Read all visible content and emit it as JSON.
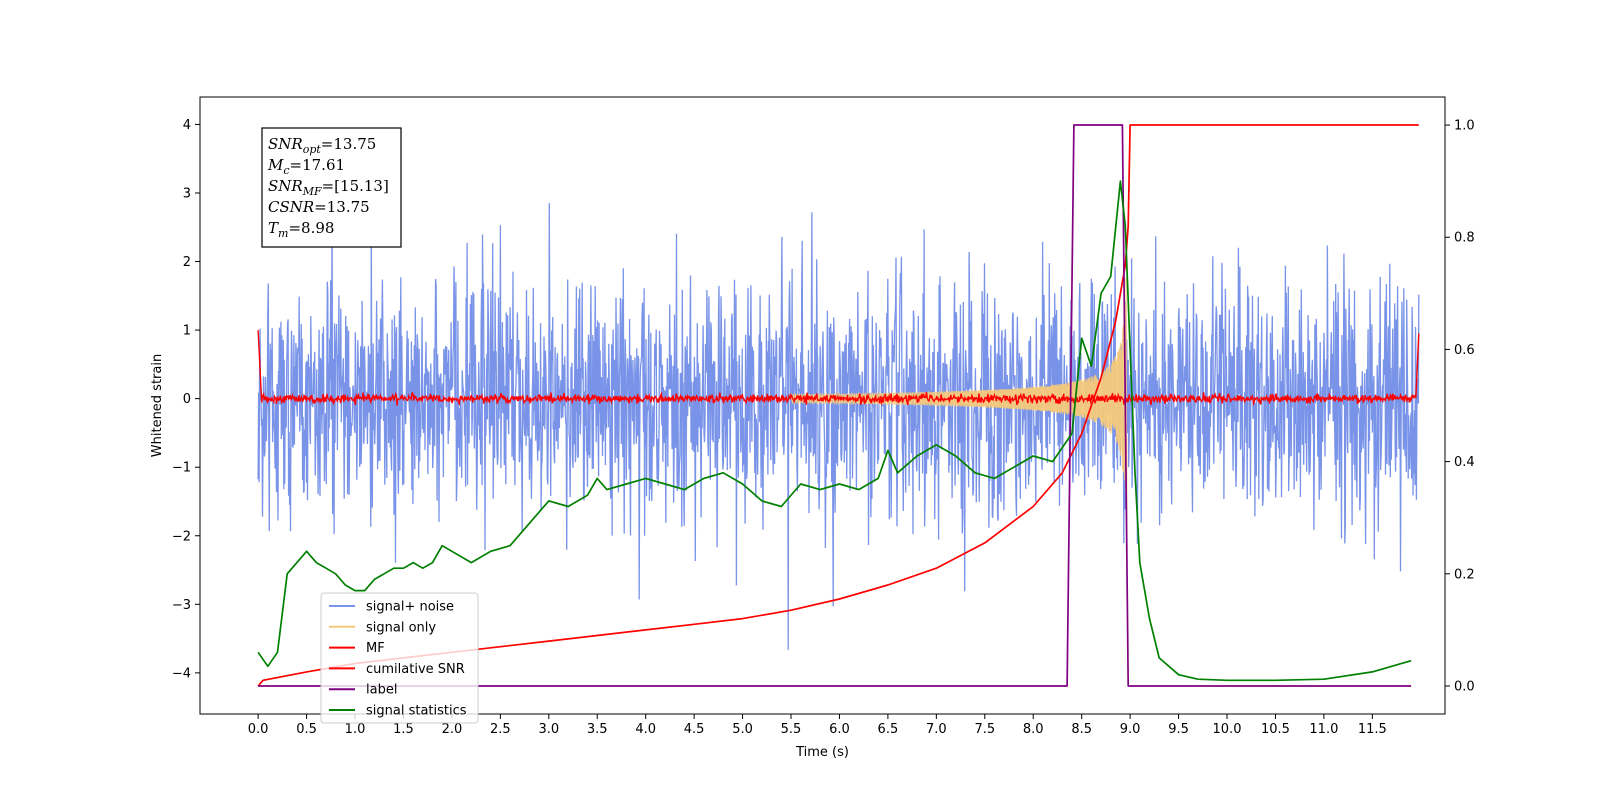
{
  "chart_data": {
    "type": "line",
    "xlabel": "Time (s)",
    "ylabel": "Whitened strain",
    "xlim": [
      -0.6,
      12.25
    ],
    "ylim_left": [
      -4.6,
      4.4
    ],
    "ylim_right": [
      -0.05,
      1.05
    ],
    "x_ticks": [
      0.0,
      0.5,
      1.0,
      1.5,
      2.0,
      2.5,
      3.0,
      3.5,
      4.0,
      4.5,
      5.0,
      5.5,
      6.0,
      6.5,
      7.0,
      7.5,
      8.0,
      8.5,
      9.0,
      9.5,
      10.0,
      10.5,
      11.0,
      11.5
    ],
    "x_tick_labels": [
      "0.0",
      "0.5",
      "1.0",
      "1.5",
      "2.0",
      "2.5",
      "3.0",
      "3.5",
      "4.0",
      "4.5",
      "5.0",
      "5.5",
      "6.0",
      "6.5",
      "7.0",
      "7.5",
      "8.0",
      "8.5",
      "9.0",
      "9.5",
      "10.0",
      "10.5",
      "11.0",
      "11.5"
    ],
    "y_ticks_left": [
      4,
      3,
      2,
      1,
      0,
      -1,
      -2,
      -3,
      -4
    ],
    "y_tick_labels_left": [
      "4",
      "3",
      "2",
      "1",
      "0",
      "−1",
      "−2",
      "−3",
      "−4"
    ],
    "y_ticks_right": [
      1.0,
      0.8,
      0.6,
      0.4,
      0.2,
      0.0
    ],
    "y_tick_labels_right": [
      "1.0",
      "0.8",
      "0.6",
      "0.4",
      "0.2",
      "0.0"
    ],
    "grid": false,
    "legend_position": "lower-left",
    "annotation": {
      "lines": [
        {
          "main": "SNR",
          "sub": "opt",
          "rest": "=13.75"
        },
        {
          "main": "M",
          "sub": "c",
          "rest": "=17.61"
        },
        {
          "main": "SNR",
          "sub": "MF",
          "rest": "=[15.13]"
        },
        {
          "main": "CSNR",
          "sub": "",
          "rest": "=13.75"
        },
        {
          "main": "T",
          "sub": "m",
          "rest": "=8.98"
        }
      ]
    },
    "series": [
      {
        "name": "signal+ noise",
        "color": "#7893e8",
        "axis": "left",
        "description": "whitened noisy strain, ~±2.5 amplitude with spikes to ~±4",
        "amplitude": 2.3,
        "x_range": [
          0.0,
          11.98
        ]
      },
      {
        "name": "signal only",
        "color": "#f5c97a",
        "axis": "left",
        "description": "chirp waveform growing toward merger",
        "chirp_end": 8.98,
        "peak_amplitude": 2.3
      },
      {
        "name": "MF",
        "color": "#ff0000",
        "axis": "left",
        "description": "matched-filter output near zero, jumps to 1 at edges",
        "amplitude": 0.12
      },
      {
        "name": "cumilative SNR",
        "color": "#ff0000",
        "axis": "right",
        "x": [
          0.0,
          0.05,
          0.5,
          1.0,
          1.5,
          2.0,
          2.5,
          3.0,
          3.5,
          4.0,
          4.5,
          5.0,
          5.5,
          6.0,
          6.5,
          7.0,
          7.5,
          8.0,
          8.3,
          8.5,
          8.7,
          8.85,
          8.95,
          8.98,
          9.0,
          11.98
        ],
        "values": [
          0.0,
          0.01,
          0.025,
          0.04,
          0.05,
          0.06,
          0.07,
          0.08,
          0.09,
          0.1,
          0.11,
          0.12,
          0.135,
          0.155,
          0.18,
          0.21,
          0.255,
          0.32,
          0.38,
          0.45,
          0.55,
          0.65,
          0.75,
          0.82,
          1.0,
          1.0
        ]
      },
      {
        "name": "label",
        "color": "#800080",
        "axis": "right",
        "x": [
          0.0,
          8.35,
          8.42,
          8.92,
          8.98,
          11.9
        ],
        "values": [
          0.0,
          0.0,
          1.0,
          1.0,
          0.0,
          0.0
        ]
      },
      {
        "name": "signal statistics",
        "color": "#008000",
        "axis": "right",
        "x": [
          0.0,
          0.1,
          0.2,
          0.3,
          0.4,
          0.5,
          0.6,
          0.7,
          0.8,
          0.9,
          1.0,
          1.1,
          1.2,
          1.3,
          1.4,
          1.5,
          1.6,
          1.7,
          1.8,
          1.9,
          2.0,
          2.2,
          2.4,
          2.6,
          2.8,
          3.0,
          3.2,
          3.4,
          3.5,
          3.6,
          3.8,
          4.0,
          4.2,
          4.4,
          4.6,
          4.8,
          5.0,
          5.2,
          5.4,
          5.6,
          5.8,
          6.0,
          6.2,
          6.4,
          6.5,
          6.6,
          6.8,
          7.0,
          7.2,
          7.4,
          7.6,
          7.8,
          8.0,
          8.2,
          8.4,
          8.5,
          8.6,
          8.7,
          8.8,
          8.9,
          8.95,
          9.0,
          9.05,
          9.1,
          9.2,
          9.3,
          9.5,
          9.7,
          10.0,
          10.5,
          11.0,
          11.5,
          11.9
        ],
        "values": [
          0.06,
          0.035,
          0.06,
          0.2,
          0.22,
          0.24,
          0.22,
          0.21,
          0.2,
          0.18,
          0.17,
          0.17,
          0.19,
          0.2,
          0.21,
          0.21,
          0.22,
          0.21,
          0.22,
          0.25,
          0.24,
          0.22,
          0.24,
          0.25,
          0.29,
          0.33,
          0.32,
          0.34,
          0.37,
          0.35,
          0.36,
          0.37,
          0.36,
          0.35,
          0.37,
          0.38,
          0.36,
          0.33,
          0.32,
          0.36,
          0.35,
          0.36,
          0.35,
          0.37,
          0.42,
          0.38,
          0.41,
          0.43,
          0.41,
          0.38,
          0.37,
          0.39,
          0.41,
          0.4,
          0.45,
          0.62,
          0.57,
          0.7,
          0.73,
          0.9,
          0.82,
          0.6,
          0.38,
          0.22,
          0.12,
          0.05,
          0.02,
          0.012,
          0.01,
          0.01,
          0.012,
          0.025,
          0.045
        ]
      }
    ]
  }
}
